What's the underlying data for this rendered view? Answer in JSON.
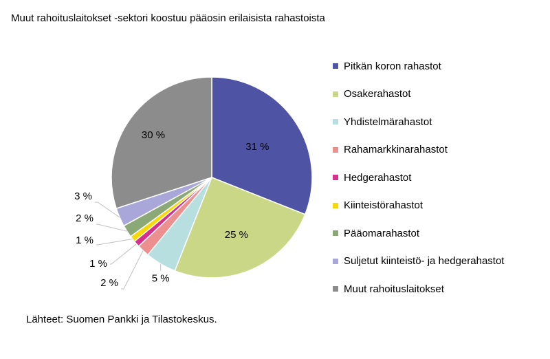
{
  "chart_data": {
    "type": "pie",
    "title": "Muut rahoituslaitokset -sektori koostuu pääosin erilaisista rahastoista",
    "legend_position": "right",
    "slices": [
      {
        "name": "Pitkän koron rahastot",
        "value": 31,
        "label": "31 %",
        "color": "#4e54a3"
      },
      {
        "name": "Osakerahastot",
        "value": 25,
        "label": "25 %",
        "color": "#c9d786"
      },
      {
        "name": "Yhdistelmärahastot",
        "value": 5,
        "label": "5 %",
        "color": "#b7dfe0"
      },
      {
        "name": "Rahamarkkinarahastot",
        "value": 2,
        "label": "2 %",
        "color": "#ee8f8f"
      },
      {
        "name": "Hedgerahastot",
        "value": 1,
        "label": "1 %",
        "color": "#d4308c"
      },
      {
        "name": "Kiinteistörahastot",
        "value": 1,
        "label": "1 %",
        "color": "#f5d90a"
      },
      {
        "name": "Pääomarahastot",
        "value": 2,
        "label": "2 %",
        "color": "#8aa977"
      },
      {
        "name": "Suljetut kiinteistö- ja hedgerahastot",
        "value": 3,
        "label": "3 %",
        "color": "#a9a6d9"
      },
      {
        "name": "Muut rahoituslaitokset",
        "value": 30,
        "label": "30 %",
        "color": "#8c8c8c"
      }
    ]
  },
  "source_note": "Lähteet: Suomen Pankki ja Tilastokeskus."
}
